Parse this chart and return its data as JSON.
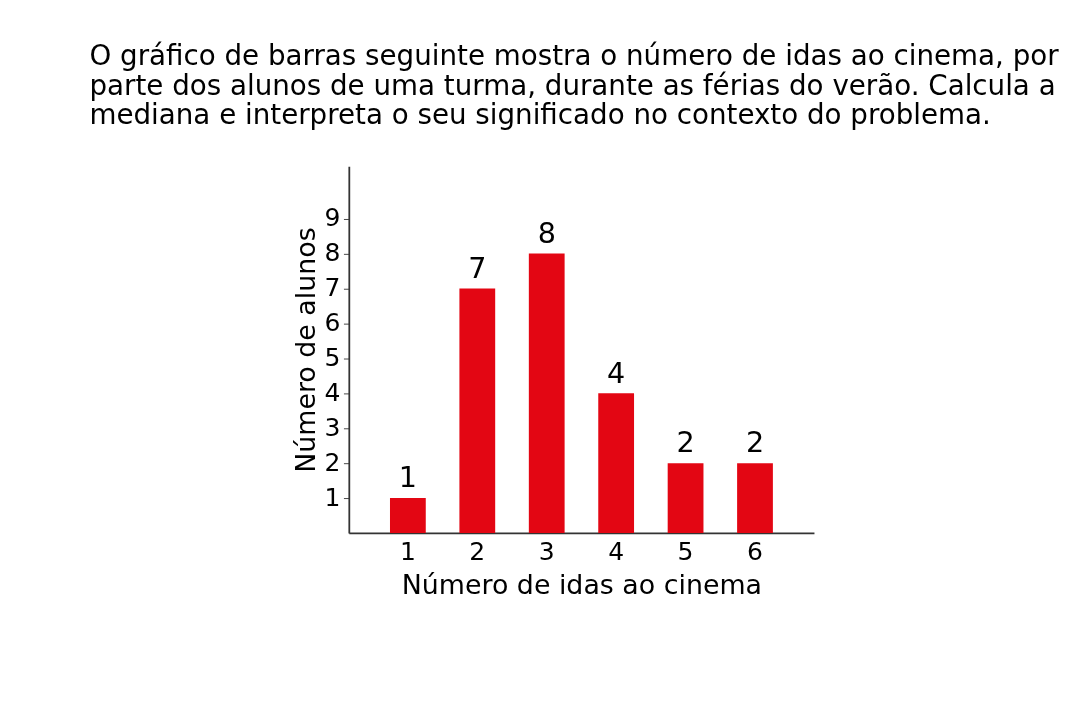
{
  "chart_data": {
    "type": "bar",
    "title": "O gráfico de barras seguinte mostra o número de idas ao cinema, por parte dos alunos de uma turma, durante as férias do verão. Calcula a mediana e interpreta o seu significado no contexto do problema.",
    "xlabel": "Número de idas ao cinema",
    "ylabel": "Número de alunos",
    "categories": [
      "1",
      "2",
      "3",
      "4",
      "5",
      "6"
    ],
    "values": [
      1,
      7,
      8,
      4,
      2,
      2
    ],
    "color": "#e30613",
    "ylim": [
      0,
      10.5
    ],
    "yticks": [
      1,
      2,
      3,
      4,
      5,
      6,
      7,
      8,
      9
    ],
    "data_labels": true,
    "grid": false
  }
}
